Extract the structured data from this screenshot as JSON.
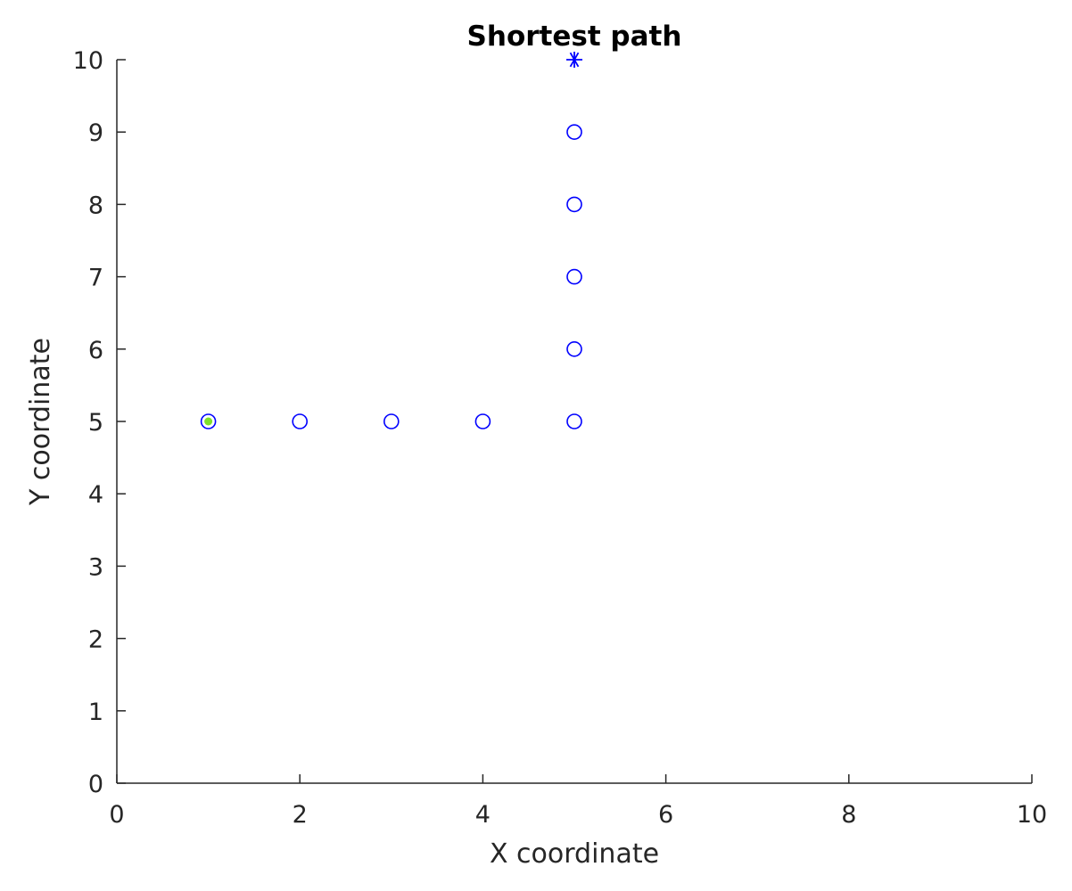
{
  "chart_data": {
    "type": "scatter",
    "title": "Shortest path",
    "xlabel": "X coordinate",
    "ylabel": "Y coordinate",
    "xlim": [
      0,
      10
    ],
    "ylim": [
      0,
      10
    ],
    "xticks": [
      "0",
      "2",
      "4",
      "6",
      "8",
      "10"
    ],
    "yticks": [
      "0",
      "1",
      "2",
      "3",
      "4",
      "5",
      "6",
      "7",
      "8",
      "9",
      "10"
    ],
    "grid": false,
    "series": [
      {
        "marker": "circle",
        "color": "#0000ff",
        "points": [
          {
            "x": 1,
            "y": 5
          },
          {
            "x": 2,
            "y": 5
          },
          {
            "x": 3,
            "y": 5
          },
          {
            "x": 4,
            "y": 5
          },
          {
            "x": 5,
            "y": 5
          },
          {
            "x": 5,
            "y": 6
          },
          {
            "x": 5,
            "y": 7
          },
          {
            "x": 5,
            "y": 8
          },
          {
            "x": 5,
            "y": 9
          }
        ]
      },
      {
        "marker": "dot",
        "color": "#7fe02a",
        "points": [
          {
            "x": 1,
            "y": 5
          }
        ]
      },
      {
        "marker": "asterisk",
        "color": "#0000ff",
        "points": [
          {
            "x": 5,
            "y": 10
          }
        ]
      }
    ],
    "axis_color": "#262626"
  }
}
